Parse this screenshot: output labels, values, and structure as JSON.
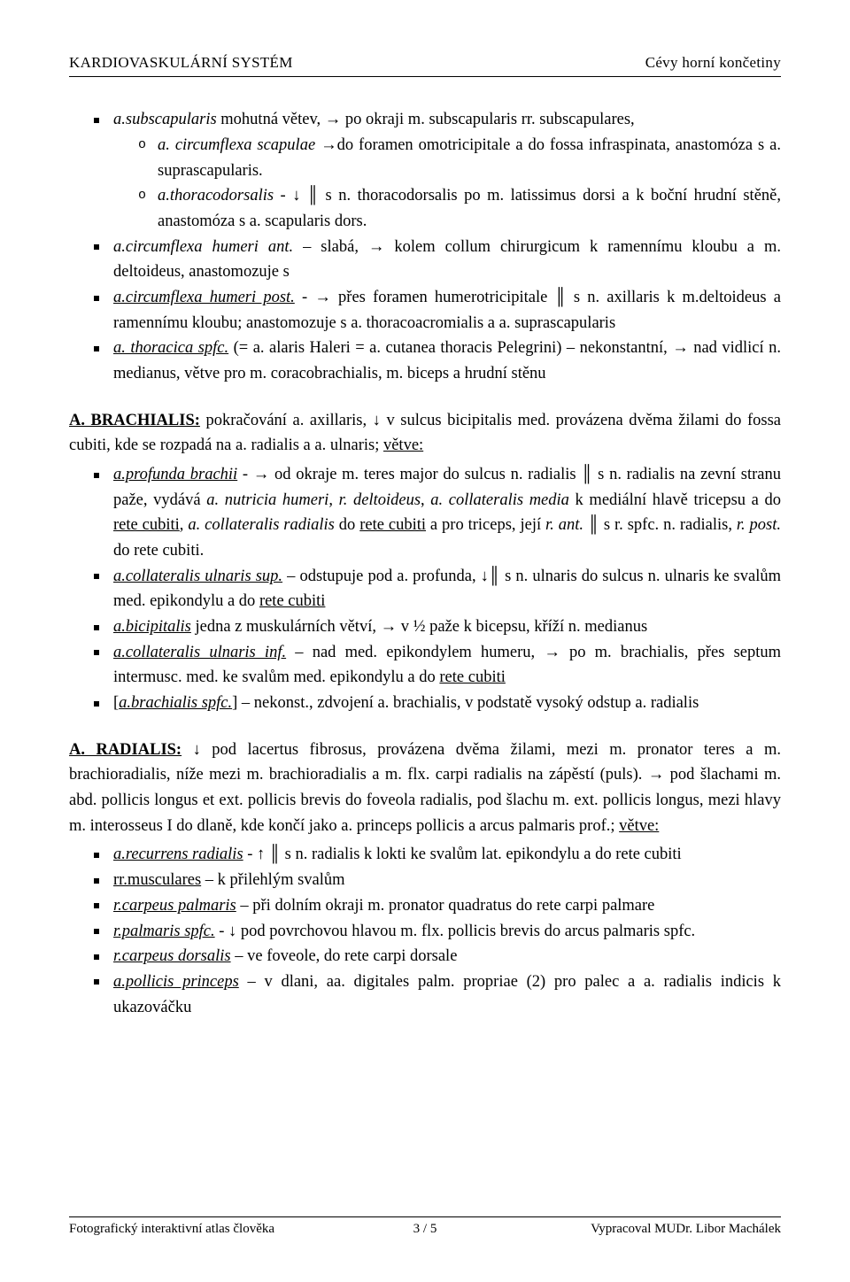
{
  "header": {
    "left": "KARDIOVASKULÁRNÍ SYSTÉM",
    "right": "Cévy horní končetiny"
  },
  "block1": {
    "li1": {
      "lead_i": "a.subscapularis",
      "rest": " mohutná větev, → po okraji m. subscapularis rr. subscapulares,",
      "sub1": {
        "i": "a. circumflexa scapulae",
        "rest": " →do foramen omotricipitale a do fossa infraspinata, anastomóza s a. suprascapularis."
      },
      "sub2": {
        "i": "a.thoracodorsalis",
        "rest": " - ↓ ║ s n. thoracodorsalis po m. latissimus dorsi a k boční hrudní stěně, anastomóza s a. scapularis dors."
      }
    },
    "li2": {
      "i": "a.circumflexa humeri ant.",
      "rest": " – slabá, → kolem collum chirurgicum k ramennímu kloubu a m. deltoideus, anastomozuje s"
    },
    "li3": {
      "iu": "a.circumflexa humeri post.",
      "rest": " - → přes foramen humerotricipitale ║ s n. axillaris k m.deltoideus a ramennímu kloubu; anastomozuje s a. thoracoacromialis a a. supra­scapularis"
    },
    "li4": {
      "iu": "a. thoracica spfc.",
      "rest": " (= a. alaris Haleri = a. cutanea thoracis Pelegrini) – nekonstantní, → nad vidlicí n. medianus, větve pro m. coracobrachialis, m. biceps a hrudní stěnu"
    }
  },
  "brachialis": {
    "head_b": "A. BRACHIALIS:",
    "head_rest": " pokračování a. axillaris, ↓ v sulcus bicipitalis med. provázena dvěma žilami do fossa cubiti, kde se rozpadá na a. radialis a a. ulnaris; ",
    "head_u": "větve:",
    "li1": {
      "iu": "a.profunda brachii",
      "mid1": " - → od okraje m. teres major do sulcus n. radialis ║ s n. radialis na zevní stranu paže, vydává ",
      "i2": "a. nutricia humeri",
      "mid2": ", ",
      "i3": "r. deltoideus",
      "mid3": ", ",
      "i4": "a. collateralis media",
      "mid4": " k mediální hlavě tricepsu a do ",
      "u1": "rete cubiti",
      "mid5": ", ",
      "i5": "a. collateralis radialis",
      "mid6": " do ",
      "u2": "rete cubiti",
      "mid7": " a pro triceps,  její ",
      "i6": "r. ant.",
      "mid8": " ║ s r. spfc. n. radialis, ",
      "i7": "r. post.",
      "mid9": " do rete cubiti."
    },
    "li2": {
      "iu": "a.collateralis ulnaris sup.",
      "mid": " – odstupuje pod a. profunda, ↓║ s n. ulnaris do sulcus n. ulnaris ke svalům med. epikondylu a do ",
      "u": "rete cubiti"
    },
    "li3": {
      "iu": "a.bicipitalis",
      "rest": " jedna z muskulárních větví, → v ½ paže k bicepsu, kříží n. medianus"
    },
    "li4": {
      "iu": "a.collateralis ulnaris inf.",
      "mid": " – nad med. epikondylem humeru, → po m. brachialis, přes septum intermusc. med. ke svalům med. epikondylu a do ",
      "u": "rete cubiti"
    },
    "li5": {
      "pre": "[",
      "iu": "a.brachialis spfc.",
      "rest": "] – nekonst., zdvojení a. brachialis, v podstatě vysoký odstup a. radialis"
    }
  },
  "radialis": {
    "head_b": "A. RADIALIS:",
    "para": " ↓ pod lacertus fibrosus, provázena dvěma žilami,  mezi m. pronator teres a m. brachioradialis, níže mezi m. brachioradialis a m. flx. carpi radialis na zápěstí (puls). → pod šlachami m. abd. pollicis longus et ext. pollicis brevis do foveola radialis, pod šlachu m. ext. pollicis longus, mezi hlavy m. interosseus I do dlaně, kde končí jako a. princeps pollicis a  arcus palmaris prof.; ",
    "u": "větve:",
    "li1": {
      "iu": "a.recurrens radialis",
      "rest": " - ↑ ║ s n. radialis k lokti ke svalům lat. epikondylu a do rete cubiti"
    },
    "li2": {
      "u": "rr.musculares",
      "rest": " – k přilehlým svalům"
    },
    "li3": {
      "iu": "r.carpeus palmaris",
      "rest": " – při dolním okraji m. pronator quadratus do rete carpi palmare"
    },
    "li4": {
      "iu": "r.palmaris spfc.",
      "rest": " - ↓ pod povrchovou hlavou m. flx. pollicis brevis do arcus palmaris spfc."
    },
    "li5": {
      "iu": "r.carpeus dorsalis",
      "rest": " – ve foveole, do rete carpi dorsale"
    },
    "li6": {
      "iu": "a.pollicis princeps",
      "rest": " – v dlani, aa. digitales palm. propriae (2) pro palec a a. radialis indicis k ukazováčku"
    }
  },
  "footer": {
    "left": "Fotografický interaktivní atlas člověka",
    "center": "3 / 5",
    "right": "Vypracoval MUDr. Libor Machálek"
  }
}
